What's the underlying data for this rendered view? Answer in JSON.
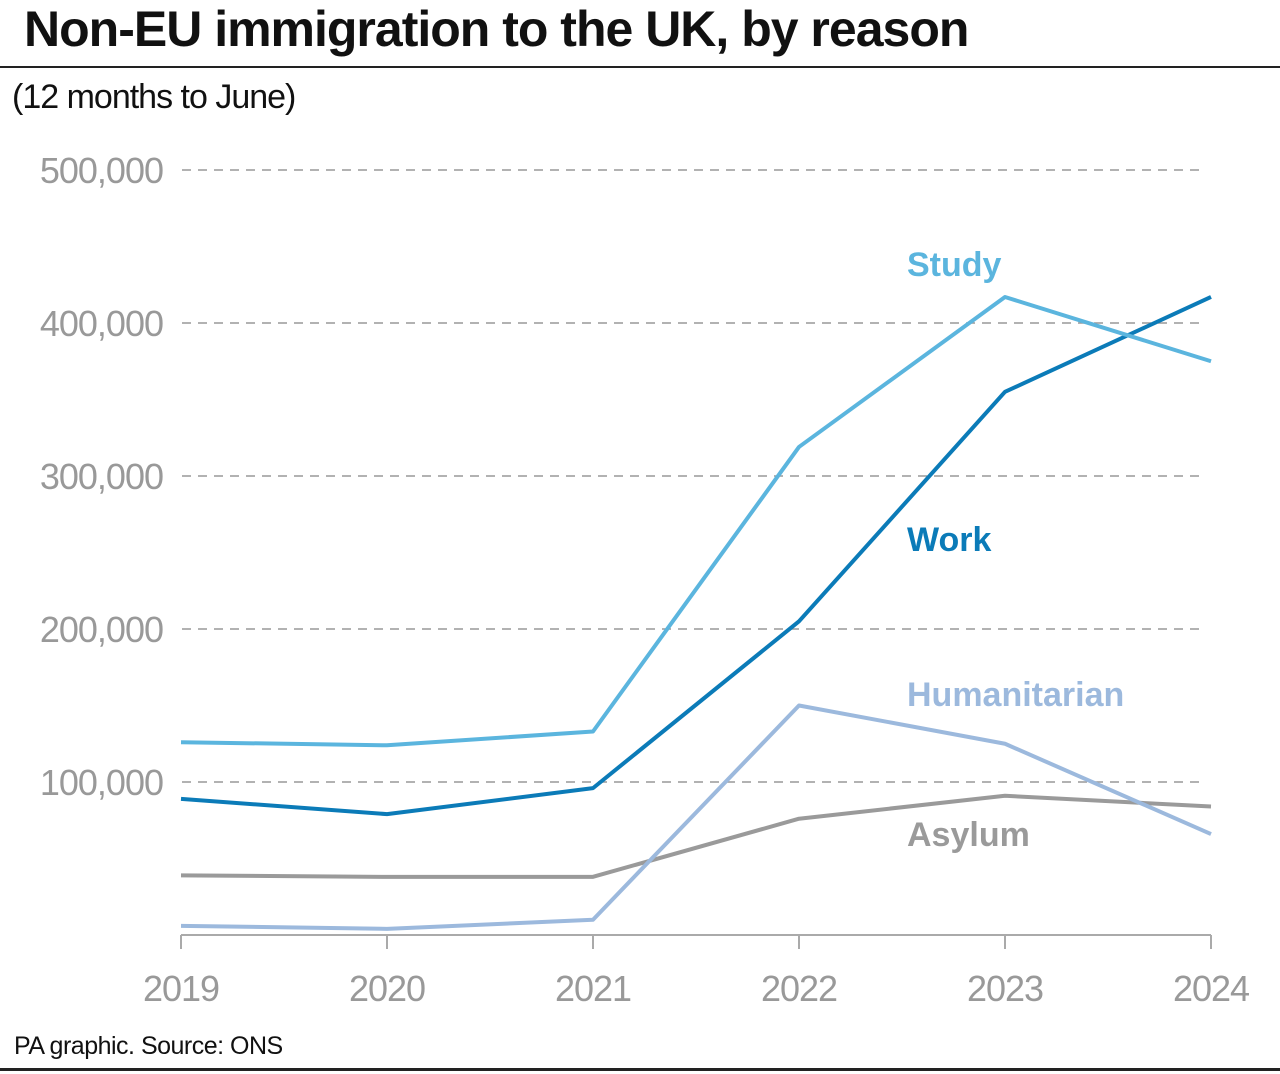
{
  "title": "Non-EU immigration to the UK, by reason",
  "subtitle": "(12 months to June)",
  "source": "PA graphic. Source: ONS",
  "chart_data": {
    "type": "line",
    "x": [
      "2019",
      "2020",
      "2021",
      "2022",
      "2023",
      "2024"
    ],
    "ylim": [
      0,
      500000
    ],
    "yticks": [
      100000,
      200000,
      300000,
      400000,
      500000
    ],
    "ytick_labels": [
      "100,000",
      "200,000",
      "300,000",
      "400,000",
      "500,000"
    ],
    "grid": "horizontal dashed",
    "series": [
      {
        "name": "Study",
        "color": "#5bb5de",
        "values": [
          126000,
          124000,
          133000,
          319000,
          417000,
          375000
        ]
      },
      {
        "name": "Work",
        "color": "#0b7bb8",
        "values": [
          89000,
          79000,
          96000,
          205000,
          355000,
          417000
        ]
      },
      {
        "name": "Humanitarian",
        "color": "#9cb9dd",
        "values": [
          6000,
          4000,
          10000,
          150000,
          125000,
          66000
        ]
      },
      {
        "name": "Asylum",
        "color": "#9a9a9a",
        "values": [
          39000,
          38000,
          38000,
          76000,
          91000,
          84000
        ]
      }
    ]
  }
}
